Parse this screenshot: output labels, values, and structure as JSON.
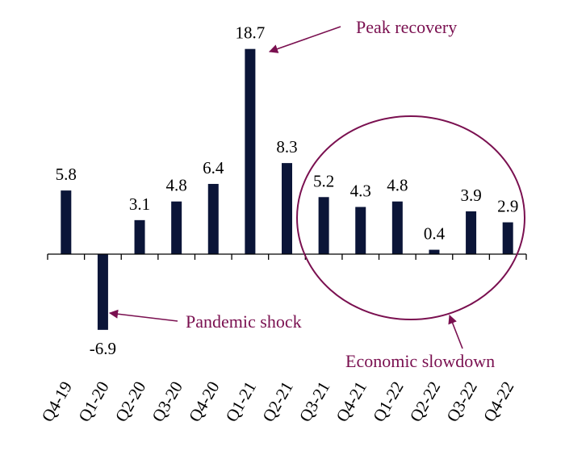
{
  "chart_data": {
    "type": "bar",
    "categories": [
      "Q4-19",
      "Q1-20",
      "Q2-20",
      "Q3-20",
      "Q4-20",
      "Q1-21",
      "Q2-21",
      "Q3-21",
      "Q4-21",
      "Q1-22",
      "Q2-22",
      "Q3-22",
      "Q4-22"
    ],
    "values": [
      5.8,
      -6.9,
      3.1,
      4.8,
      6.4,
      18.7,
      8.3,
      5.2,
      4.3,
      4.8,
      0.4,
      3.9,
      2.9
    ],
    "value_labels": [
      "5.8",
      "-6.9",
      "3.1",
      "4.8",
      "6.4",
      "18.7",
      "8.3",
      "5.2",
      "4.3",
      "4.8",
      "0.4",
      "3.9",
      "2.9"
    ],
    "title": "",
    "xlabel": "",
    "ylabel": "",
    "grid": false,
    "legend": "none",
    "bar_color": "#0b1538",
    "annotation_color": "#7a1050",
    "annotations": {
      "peak": "Peak recovery",
      "shock": "Pandemic shock",
      "slowdown": "Economic slowdown"
    }
  }
}
